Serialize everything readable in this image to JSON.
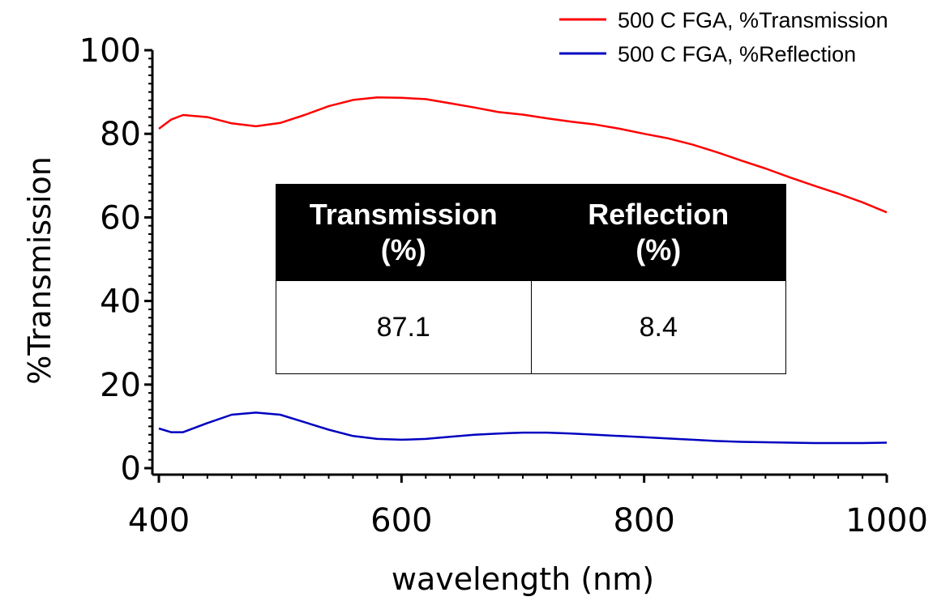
{
  "chart_data": {
    "type": "line",
    "xlabel": "wavelength (nm)",
    "ylabel": "%Transmission",
    "xlim": [
      400,
      1000
    ],
    "ylim": [
      0,
      100
    ],
    "x_ticks": [
      "400",
      "600",
      "800",
      "1000"
    ],
    "y_ticks": [
      "0",
      "20",
      "40",
      "60",
      "80",
      "100"
    ],
    "grid": false,
    "legend_position": "top-right",
    "series": [
      {
        "name": "500 C FGA, %Transmission",
        "color": "#ff0000",
        "x": [
          400,
          410,
          420,
          440,
          460,
          480,
          500,
          520,
          540,
          560,
          580,
          600,
          620,
          640,
          660,
          680,
          700,
          720,
          740,
          760,
          780,
          800,
          820,
          840,
          860,
          880,
          900,
          920,
          940,
          960,
          980,
          1000
        ],
        "y": [
          81.2,
          83.4,
          84.5,
          84.0,
          82.5,
          81.8,
          82.6,
          84.5,
          86.6,
          88.1,
          88.7,
          88.6,
          88.3,
          87.3,
          86.3,
          85.2,
          84.6,
          83.7,
          82.9,
          82.2,
          81.2,
          80.0,
          78.9,
          77.4,
          75.6,
          73.6,
          71.7,
          69.6,
          67.6,
          65.7,
          63.6,
          61.2
        ]
      },
      {
        "name": "500 C FGA, %Reflection",
        "color": "#0000c0",
        "x": [
          400,
          410,
          420,
          440,
          460,
          480,
          500,
          520,
          540,
          560,
          580,
          600,
          620,
          640,
          660,
          680,
          700,
          720,
          740,
          760,
          780,
          800,
          820,
          840,
          860,
          880,
          900,
          920,
          940,
          960,
          980,
          1000
        ],
        "y": [
          9.5,
          8.6,
          8.6,
          10.8,
          12.8,
          13.3,
          12.8,
          11.0,
          9.2,
          7.7,
          7.0,
          6.8,
          7.0,
          7.5,
          8.0,
          8.3,
          8.5,
          8.5,
          8.3,
          8.0,
          7.7,
          7.4,
          7.1,
          6.8,
          6.5,
          6.3,
          6.2,
          6.1,
          6.0,
          6.0,
          6.0,
          6.1
        ]
      }
    ]
  },
  "inset_table": {
    "headers": [
      "Transmission\n(%)",
      "Reflection\n(%)"
    ],
    "values": [
      "87.1",
      "8.4"
    ]
  }
}
